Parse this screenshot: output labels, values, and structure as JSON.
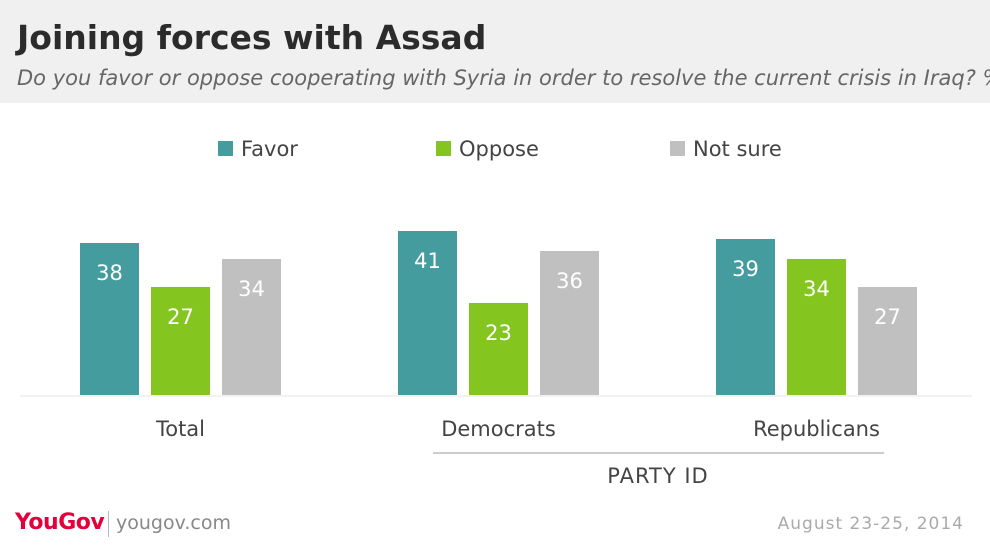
{
  "header": {
    "title": "Joining forces with Assad",
    "subtitle": "Do you favor or oppose cooperating with Syria in order to resolve the current crisis in Iraq? %"
  },
  "chart_data": {
    "type": "bar",
    "title": "Joining forces with Assad",
    "subtitle": "Do you favor or oppose cooperating with Syria in order to resolve the current crisis in Iraq? %",
    "categories": [
      "Total",
      "Democrats",
      "Republicans"
    ],
    "group_label": "PARTY ID",
    "series": [
      {
        "name": "Favor",
        "color": "#459c9f",
        "values": [
          38,
          41,
          39
        ]
      },
      {
        "name": "Oppose",
        "color": "#84c51f",
        "values": [
          27,
          23,
          34
        ]
      },
      {
        "name": "Not sure",
        "color": "#c0c0c0",
        "values": [
          34,
          36,
          27
        ]
      }
    ],
    "ylim": [
      0,
      50
    ],
    "grid": false,
    "legend_position": "top"
  },
  "footer": {
    "brand": "YouGov",
    "site": "yougov.com",
    "date": "August 23-25, 2014"
  }
}
